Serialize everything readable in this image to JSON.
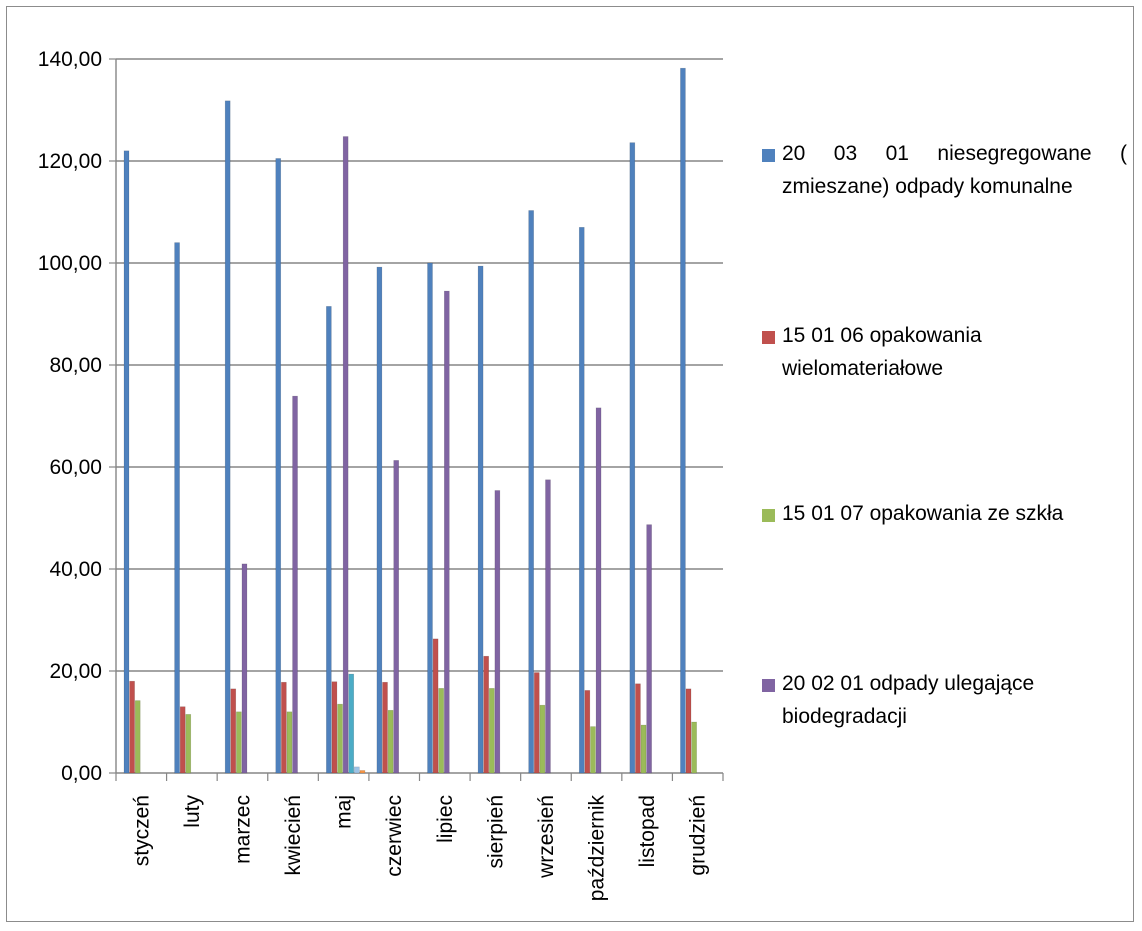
{
  "chart_data": {
    "type": "bar",
    "title": "",
    "xlabel": "",
    "ylabel": "",
    "ylim": [
      0,
      140
    ],
    "yticks": [
      "0,00",
      "20,00",
      "40,00",
      "60,00",
      "80,00",
      "100,00",
      "120,00",
      "140,00"
    ],
    "grid": true,
    "legend_position": "right",
    "categories": [
      "styczeń",
      "luty",
      "marzec",
      "kwiecień",
      "maj",
      "czerwiec",
      "lipiec",
      "sierpień",
      "wrzesień",
      "październik",
      "listopad",
      "grudzień"
    ],
    "series": [
      {
        "name": "20 03 01   niesegregowane     ( zmieszane) odpady komunalne",
        "color": "#4F81BD",
        "values": [
          122.0,
          104.0,
          131.8,
          120.5,
          91.5,
          99.2,
          100.0,
          99.4,
          110.3,
          107.0,
          123.6,
          138.2
        ]
      },
      {
        "name": "15 01 06 opakowania wielomateriałowe",
        "color": "#C0504D",
        "values": [
          18.0,
          13.0,
          16.5,
          17.8,
          17.9,
          17.8,
          26.3,
          22.9,
          19.7,
          16.2,
          17.5,
          16.5
        ]
      },
      {
        "name": "15 01 07 opakowania ze szkła",
        "color": "#9BBB59",
        "values": [
          14.2,
          11.5,
          12.0,
          12.0,
          13.5,
          12.3,
          16.6,
          16.6,
          13.3,
          9.1,
          9.4,
          10.0
        ]
      },
      {
        "name": "20 02 01 odpady ulegające biodegradacji",
        "color": "#8064A2",
        "values": [
          0,
          0,
          41.0,
          73.9,
          124.8,
          61.3,
          94.5,
          55.4,
          57.5,
          71.6,
          48.7,
          0
        ]
      },
      {
        "name": "",
        "color": "#4BACC6",
        "values": [
          0,
          0,
          0,
          0,
          19.4,
          0,
          0,
          0,
          0,
          0,
          0,
          0
        ]
      },
      {
        "name": "",
        "color": "#9DC3E6",
        "values": [
          0,
          0,
          0,
          0,
          1.2,
          0,
          0,
          0,
          0,
          0,
          0,
          0
        ]
      },
      {
        "name": "",
        "color": "#F79646",
        "values": [
          0,
          0,
          0,
          0,
          0.5,
          0,
          0,
          0,
          0,
          0,
          0,
          0
        ]
      }
    ]
  }
}
